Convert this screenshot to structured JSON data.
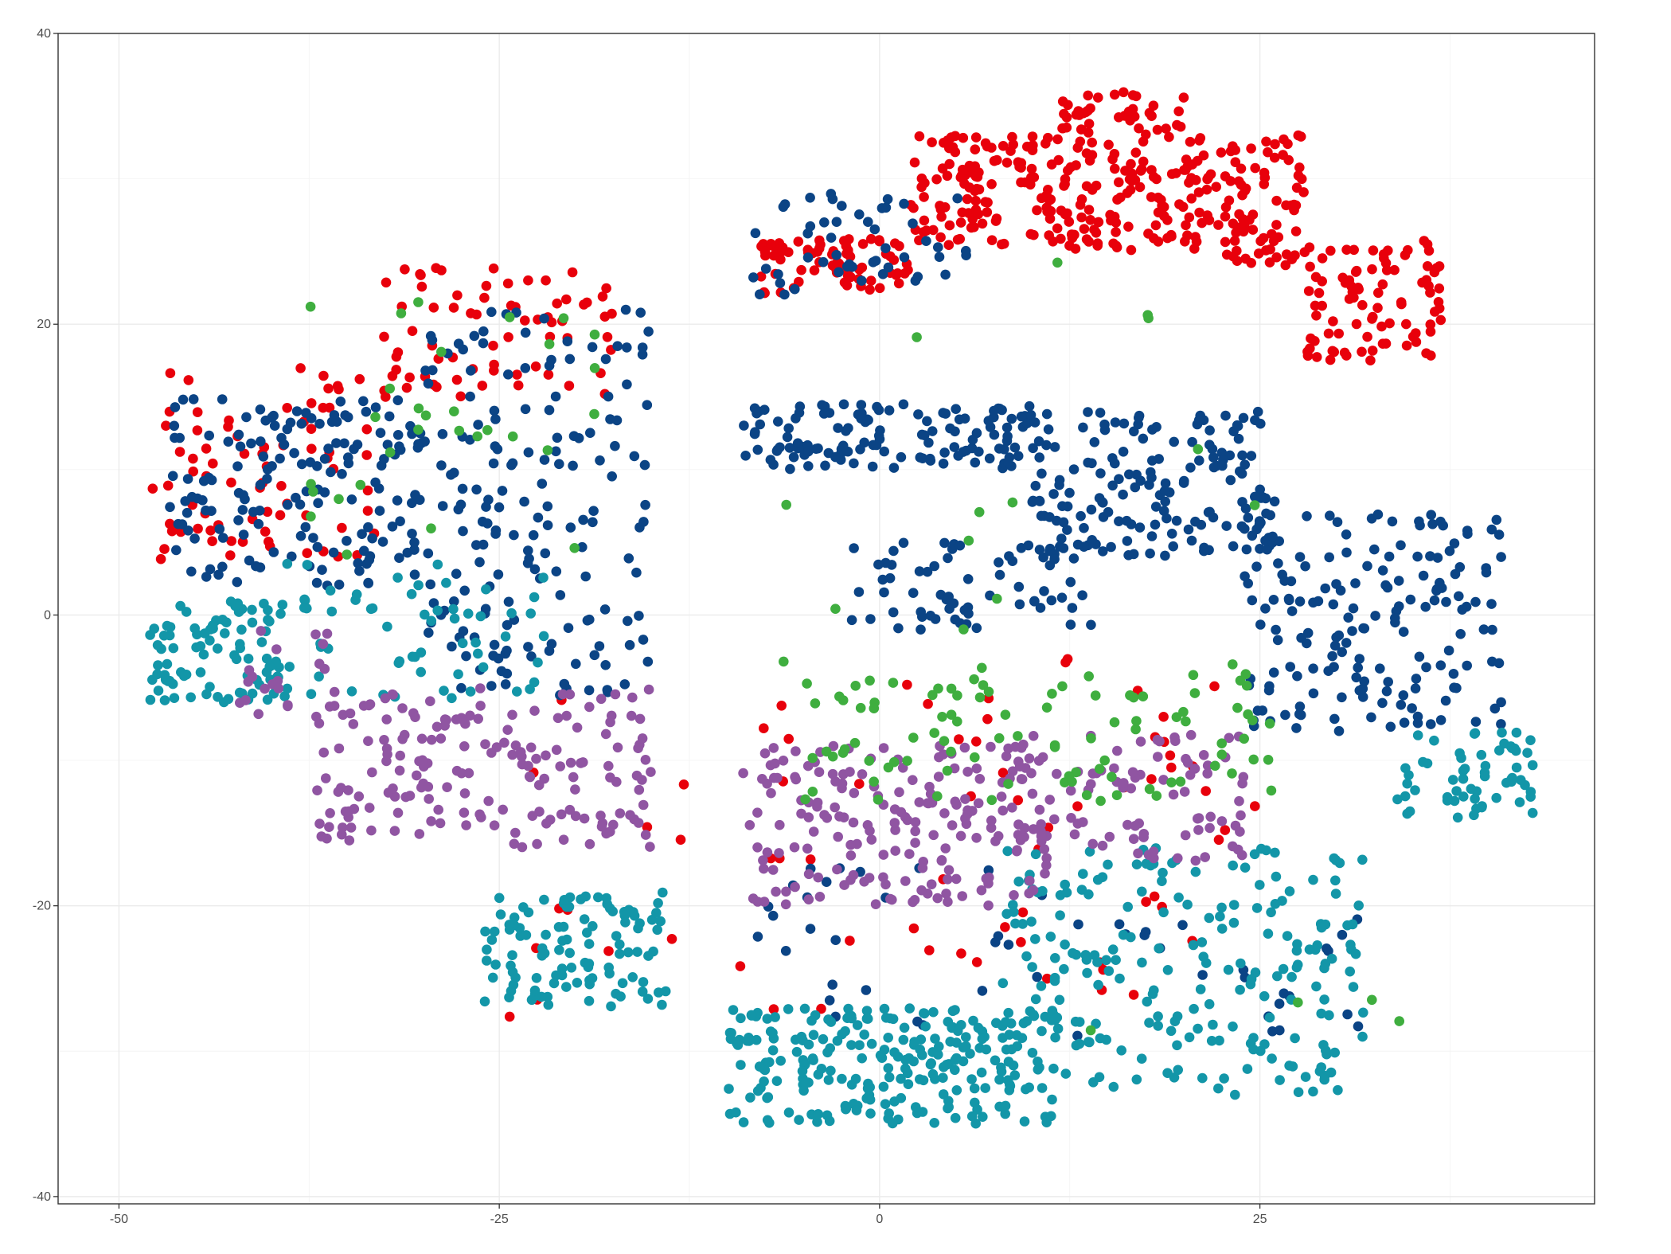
{
  "chart_data": {
    "type": "scatter",
    "title": "",
    "xlabel": "",
    "ylabel": "",
    "xlim": [
      -54,
      47
    ],
    "ylim": [
      -40.5,
      40
    ],
    "x_ticks": [
      -50,
      -25,
      0,
      25
    ],
    "x_tick_labels": [
      "-50",
      "-25",
      "0",
      "25"
    ],
    "y_ticks": [
      -40,
      -20,
      0,
      20,
      40
    ],
    "y_tick_labels": [
      "-40",
      "-20",
      "0",
      "20",
      "40"
    ],
    "grid": true,
    "legend": "none",
    "point_style": "filled circle",
    "colors": {
      "red": "#e8000b",
      "navy": "#0b4485",
      "teal": "#1396a8",
      "purple": "#9055a2",
      "green": "#3fae3f"
    },
    "series": [
      {
        "color": "red",
        "clusters": [
          {
            "x": [
              -8,
              2
            ],
            "y": [
              22,
              26
            ],
            "count": 80
          },
          {
            "x": [
              2,
              12
            ],
            "y": [
              25,
              33
            ],
            "count": 120
          },
          {
            "x": [
              12,
              20
            ],
            "y": [
              25,
              36
            ],
            "count": 130
          },
          {
            "x": [
              20,
              28
            ],
            "y": [
              24,
              33
            ],
            "count": 110
          },
          {
            "x": [
              28,
              37
            ],
            "y": [
              17.5,
              26
            ],
            "count": 90
          },
          {
            "x": [
              -47,
              -33
            ],
            "y": [
              4,
              17
            ],
            "count": 60
          },
          {
            "x": [
              -33,
              -17
            ],
            "y": [
              15,
              24
            ],
            "count": 70
          },
          {
            "x": [
              -25,
              25
            ],
            "y": [
              -28,
              -3
            ],
            "count": 70
          },
          {
            "x": [
              -48,
              -40
            ],
            "y": [
              3,
              11
            ],
            "count": 15
          }
        ]
      },
      {
        "color": "navy",
        "clusters": [
          {
            "x": [
              -47,
              -30
            ],
            "y": [
              2,
              15
            ],
            "count": 160
          },
          {
            "x": [
              -30,
              -15
            ],
            "y": [
              -6,
              21
            ],
            "count": 170
          },
          {
            "x": [
              -9,
              10
            ],
            "y": [
              10,
              14.5
            ],
            "count": 130
          },
          {
            "x": [
              10,
              26
            ],
            "y": [
              4,
              14
            ],
            "count": 170
          },
          {
            "x": [
              24,
              41
            ],
            "y": [
              -8,
              7
            ],
            "count": 170
          },
          {
            "x": [
              -2,
              14
            ],
            "y": [
              -1,
              5
            ],
            "count": 70
          },
          {
            "x": [
              -9,
              6
            ],
            "y": [
              22,
              29
            ],
            "count": 50
          },
          {
            "x": [
              -9,
              32
            ],
            "y": [
              -29,
              -17
            ],
            "count": 50
          }
        ]
      },
      {
        "color": "teal",
        "clusters": [
          {
            "x": [
              -48,
              -39
            ],
            "y": [
              -6,
              1
            ],
            "count": 90
          },
          {
            "x": [
              -39,
              -22
            ],
            "y": [
              -6,
              4
            ],
            "count": 60
          },
          {
            "x": [
              -26,
              -14
            ],
            "y": [
              -27,
              -19
            ],
            "count": 110
          },
          {
            "x": [
              -10,
              12
            ],
            "y": [
              -35,
              -27
            ],
            "count": 250
          },
          {
            "x": [
              8,
              32
            ],
            "y": [
              -33,
              -16
            ],
            "count": 220
          },
          {
            "x": [
              34,
              43
            ],
            "y": [
              -14,
              -8
            ],
            "count": 60
          }
        ]
      },
      {
        "color": "purple",
        "clusters": [
          {
            "x": [
              -37,
              -15
            ],
            "y": [
              -16,
              -5
            ],
            "count": 180
          },
          {
            "x": [
              -9,
              11
            ],
            "y": [
              -20,
              -9
            ],
            "count": 190
          },
          {
            "x": [
              8,
              24
            ],
            "y": [
              -17,
              -8
            ],
            "count": 90
          },
          {
            "x": [
              -43,
              -36
            ],
            "y": [
              -7,
              -1
            ],
            "count": 20
          }
        ]
      },
      {
        "color": "green",
        "clusters": [
          {
            "x": [
              -5,
              27
            ],
            "y": [
              -13,
              -4
            ],
            "count": 90
          },
          {
            "x": [
              -38,
              -18
            ],
            "y": [
              3,
              22
            ],
            "count": 30
          },
          {
            "x": [
              -10,
              35
            ],
            "y": [
              -34,
              30
            ],
            "count": 25
          }
        ]
      }
    ]
  }
}
